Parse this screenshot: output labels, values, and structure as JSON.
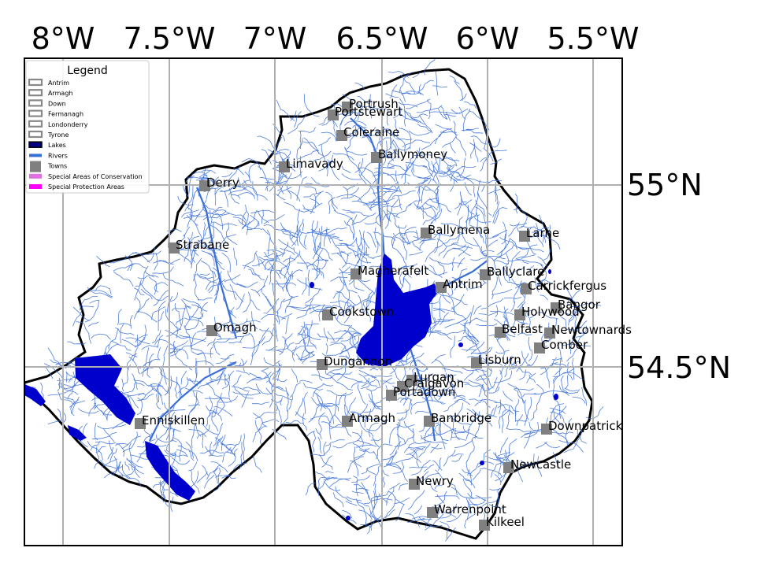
{
  "map": {
    "longitude_labels": [
      "8°W",
      "7.5°W",
      "7°W",
      "6.5°W",
      "6°W",
      "5.5°W"
    ],
    "latitude_labels": [
      "55°N",
      "54.5°N"
    ],
    "colors": {
      "land_fill": "#ffffff",
      "coastline": "#000000",
      "rivers": "#3a6fd8",
      "lakes": "#0000cc",
      "towns": "#808080",
      "grid": "#b0b0b0",
      "conservation_areas": "#e070e0",
      "protection_areas": "#ff00ff"
    }
  },
  "legend": {
    "title": "Legend",
    "items": [
      {
        "label": "Antrim",
        "symbol": "county-outline"
      },
      {
        "label": "Armagh",
        "symbol": "county-outline"
      },
      {
        "label": "Down",
        "symbol": "county-outline"
      },
      {
        "label": "Fermanagh",
        "symbol": "county-outline"
      },
      {
        "label": "Londonderry",
        "symbol": "county-outline"
      },
      {
        "label": "Tyrone",
        "symbol": "county-outline"
      },
      {
        "label": "Lakes",
        "symbol": "lake-fill"
      },
      {
        "label": "Rivers",
        "symbol": "river-line"
      },
      {
        "label": "Towns",
        "symbol": "town-square"
      },
      {
        "label": "Special Areas of Conservation",
        "symbol": "sac-fill"
      },
      {
        "label": "Special Protection Areas",
        "symbol": "spa-fill"
      }
    ]
  },
  "towns": [
    {
      "name": "Portrush"
    },
    {
      "name": "Portstewart"
    },
    {
      "name": "Coleraine"
    },
    {
      "name": "Ballymoney"
    },
    {
      "name": "Limavady"
    },
    {
      "name": "Derry"
    },
    {
      "name": "Ballymena"
    },
    {
      "name": "Larne"
    },
    {
      "name": "Strabane"
    },
    {
      "name": "Magherafelt"
    },
    {
      "name": "Ballyclare"
    },
    {
      "name": "Antrim"
    },
    {
      "name": "Carrickfergus"
    },
    {
      "name": "Bangor"
    },
    {
      "name": "Holywood"
    },
    {
      "name": "Cookstown"
    },
    {
      "name": "Belfast"
    },
    {
      "name": "Newtownards"
    },
    {
      "name": "Omagh"
    },
    {
      "name": "Comber"
    },
    {
      "name": "Dungannon"
    },
    {
      "name": "Lisburn"
    },
    {
      "name": "Lurgan"
    },
    {
      "name": "Craigavon"
    },
    {
      "name": "Portadown"
    },
    {
      "name": "Enniskillen"
    },
    {
      "name": "Armagh"
    },
    {
      "name": "Banbridge"
    },
    {
      "name": "Downpatrick"
    },
    {
      "name": "Newcastle"
    },
    {
      "name": "Newry"
    },
    {
      "name": "Warrenpoint"
    },
    {
      "name": "Kilkeel"
    }
  ]
}
